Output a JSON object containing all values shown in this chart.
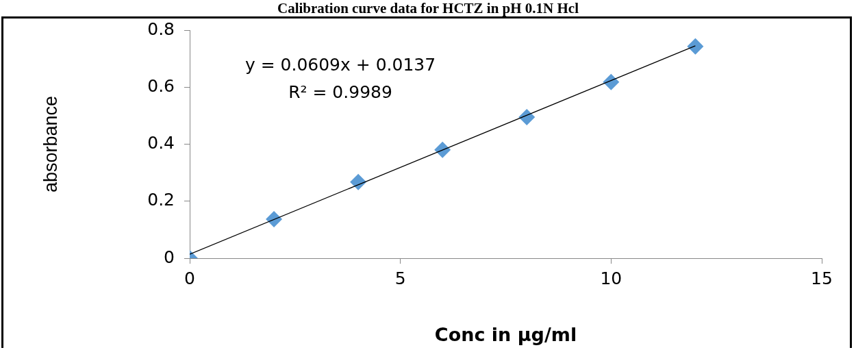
{
  "chart_data": {
    "type": "scatter",
    "title": "Calibration curve data for HCTZ in pH 0.1N Hcl",
    "xlabel": "Conc in μg/ml",
    "ylabel": "absorbance",
    "series": [
      {
        "type": "scatter",
        "color": "#5b9bd5",
        "x": [
          0,
          2,
          4,
          6,
          8,
          10,
          12
        ],
        "values": [
          0,
          0.137,
          0.267,
          0.38,
          0.495,
          0.618,
          0.743
        ],
        "marker": "diamond"
      },
      {
        "type": "line",
        "color": "#000000",
        "x": [
          0,
          12
        ],
        "values": [
          0.014,
          0.745
        ],
        "marker": "none",
        "line_style": "solid"
      }
    ],
    "xlim": [
      0,
      15
    ],
    "xticks": [
      0,
      5,
      10,
      15
    ],
    "ylim": [
      0,
      0.8
    ],
    "yticks": [
      0,
      0.2,
      0.4,
      0.6,
      0.8
    ],
    "grid": false,
    "legend": false,
    "annotations": [
      "y = 0.0609x + 0.0137",
      "R² = 0.9989"
    ]
  }
}
